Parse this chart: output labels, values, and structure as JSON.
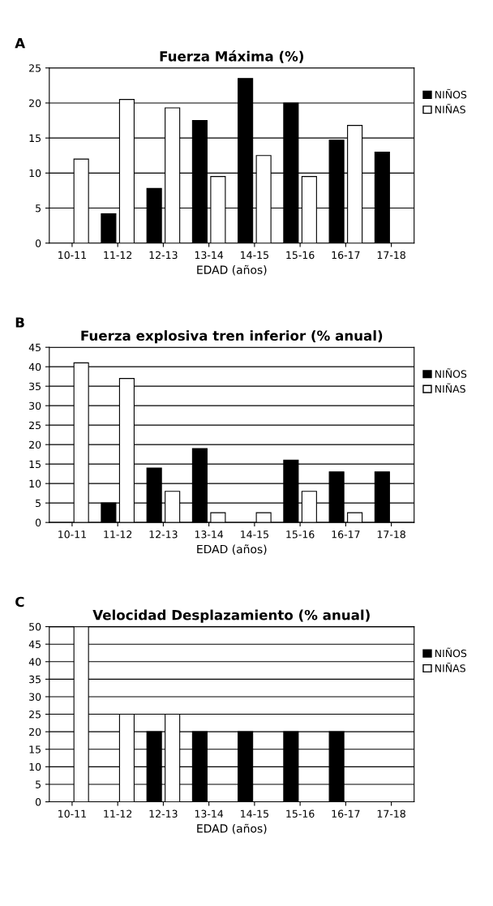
{
  "chart_data": [
    {
      "type": "bar",
      "title": "Fuerza Máxima (%)",
      "xlabel": "EDAD (años)",
      "annotations": [
        "A"
      ],
      "categories": [
        "10-11",
        "11-12",
        "12-13",
        "13-14",
        "14-15",
        "15-16",
        "16-17",
        "17-18"
      ],
      "series": [
        {
          "name": "NIÑOS",
          "color": "#000000",
          "values": [
            0,
            4.2,
            7.8,
            17.5,
            23.5,
            20,
            14.7,
            13
          ]
        },
        {
          "name": "NIÑAS",
          "color": "#ffffff",
          "values": [
            12,
            20.5,
            19.3,
            9.5,
            12.5,
            9.5,
            16.8,
            0
          ]
        }
      ],
      "ylim": [
        0,
        25
      ],
      "yticks": [
        0,
        5,
        10,
        15,
        20,
        25
      ],
      "grid": "y",
      "legend": "right"
    },
    {
      "type": "bar",
      "title": "Fuerza explosiva tren inferior (% anual)",
      "xlabel": "EDAD (años)",
      "annotations": [
        "B"
      ],
      "categories": [
        "10-11",
        "11-12",
        "12-13",
        "13-14",
        "14-15",
        "15-16",
        "16-17",
        "17-18"
      ],
      "series": [
        {
          "name": "NIÑOS",
          "color": "#000000",
          "values": [
            0,
            5,
            14,
            19,
            0,
            16,
            13,
            13
          ]
        },
        {
          "name": "NIÑAS",
          "color": "#ffffff",
          "values": [
            41,
            37,
            8,
            2.5,
            2.5,
            8,
            2.5,
            0
          ]
        }
      ],
      "ylim": [
        0,
        45
      ],
      "yticks": [
        0,
        5,
        10,
        15,
        20,
        25,
        30,
        35,
        40,
        45
      ],
      "grid": "y",
      "legend": "right"
    },
    {
      "type": "bar",
      "title": "Velocidad Desplazamiento (% anual)",
      "xlabel": "EDAD (años)",
      "annotations": [
        "C"
      ],
      "categories": [
        "10-11",
        "11-12",
        "12-13",
        "13-14",
        "14-15",
        "15-16",
        "16-17",
        "17-18"
      ],
      "series": [
        {
          "name": "NIÑOS",
          "color": "#000000",
          "values": [
            0,
            0,
            20,
            20,
            20,
            20,
            20,
            0
          ]
        },
        {
          "name": "NIÑAS",
          "color": "#ffffff",
          "values": [
            50,
            25,
            25,
            0,
            0,
            0,
            0,
            0
          ]
        }
      ],
      "ylim": [
        0,
        50
      ],
      "yticks": [
        0,
        5,
        10,
        15,
        20,
        25,
        30,
        35,
        40,
        45,
        50
      ],
      "grid": "y",
      "legend": "right"
    }
  ]
}
